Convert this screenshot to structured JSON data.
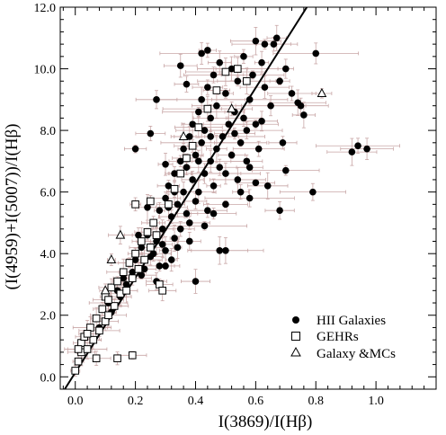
{
  "chart_data": {
    "type": "scatter",
    "xlabel": "I(3869)/I(Hβ)",
    "ylabel": "(I(4959)+I(5007))/I(Hβ)",
    "xlim": [
      -0.05,
      1.2
    ],
    "ylim": [
      -0.4,
      12.0
    ],
    "xticks": [
      0.0,
      0.2,
      0.4,
      0.6,
      0.8,
      1.0
    ],
    "xtick_labels": [
      "0.0",
      "0.2",
      "0.4",
      "0.6",
      "0.8",
      "1.0"
    ],
    "yticks": [
      0.0,
      2.0,
      4.0,
      6.0,
      8.0,
      10.0,
      12.0
    ],
    "ytick_labels": [
      "0.0",
      "2.0",
      "4.0",
      "6.0",
      "8.0",
      "10.0",
      "12.0"
    ],
    "grid": false,
    "legend_position": "bottom-right",
    "fit_line": {
      "x": [
        -0.035,
        0.77
      ],
      "y": [
        -0.4,
        12.0
      ]
    },
    "error_bar_color": "#c8a6a6",
    "series": [
      {
        "name": "HII Galaxies",
        "marker": "filled-circle",
        "points": [
          [
            0.08,
            1.6
          ],
          [
            0.12,
            2.1
          ],
          [
            0.15,
            2.6
          ],
          [
            0.17,
            3.0
          ],
          [
            0.19,
            3.4
          ],
          [
            0.2,
            3.8
          ],
          [
            0.22,
            3.3
          ],
          [
            0.22,
            4.2
          ],
          [
            0.24,
            4.6
          ],
          [
            0.25,
            3.9
          ],
          [
            0.26,
            5.0
          ],
          [
            0.27,
            4.4
          ],
          [
            0.28,
            5.4
          ],
          [
            0.28,
            3.6
          ],
          [
            0.29,
            4.8
          ],
          [
            0.3,
            5.8
          ],
          [
            0.3,
            4.1
          ],
          [
            0.31,
            6.2
          ],
          [
            0.32,
            5.2
          ],
          [
            0.32,
            3.8
          ],
          [
            0.33,
            6.6
          ],
          [
            0.33,
            4.5
          ],
          [
            0.34,
            5.6
          ],
          [
            0.35,
            7.0
          ],
          [
            0.35,
            4.8
          ],
          [
            0.36,
            6.0
          ],
          [
            0.36,
            7.4
          ],
          [
            0.37,
            5.3
          ],
          [
            0.37,
            6.8
          ],
          [
            0.38,
            7.8
          ],
          [
            0.38,
            5.0
          ],
          [
            0.39,
            6.4
          ],
          [
            0.39,
            8.2
          ],
          [
            0.4,
            5.7
          ],
          [
            0.4,
            7.2
          ],
          [
            0.41,
            8.6
          ],
          [
            0.41,
            6.0
          ],
          [
            0.42,
            7.6
          ],
          [
            0.42,
            9.0
          ],
          [
            0.43,
            6.6
          ],
          [
            0.43,
            8.0
          ],
          [
            0.44,
            5.4
          ],
          [
            0.44,
            9.4
          ],
          [
            0.45,
            7.0
          ],
          [
            0.45,
            8.4
          ],
          [
            0.46,
            6.2
          ],
          [
            0.46,
            9.8
          ],
          [
            0.47,
            7.4
          ],
          [
            0.47,
            8.8
          ],
          [
            0.48,
            6.8
          ],
          [
            0.48,
            10.2
          ],
          [
            0.49,
            7.8
          ],
          [
            0.5,
            9.2
          ],
          [
            0.5,
            6.6
          ],
          [
            0.51,
            8.2
          ],
          [
            0.52,
            10.0
          ],
          [
            0.52,
            7.2
          ],
          [
            0.53,
            8.6
          ],
          [
            0.54,
            6.4
          ],
          [
            0.54,
            9.6
          ],
          [
            0.55,
            7.6
          ],
          [
            0.56,
            8.4
          ],
          [
            0.56,
            10.4
          ],
          [
            0.57,
            7.0
          ],
          [
            0.58,
            9.0
          ],
          [
            0.58,
            6.8
          ],
          [
            0.59,
            9.8
          ],
          [
            0.6,
            8.2
          ],
          [
            0.61,
            7.4
          ],
          [
            0.62,
            10.2
          ],
          [
            0.63,
            9.4
          ],
          [
            0.64,
            6.2
          ],
          [
            0.65,
            8.8
          ],
          [
            0.66,
            10.8
          ],
          [
            0.67,
            11.0
          ],
          [
            0.68,
            9.6
          ],
          [
            0.69,
            7.6
          ],
          [
            0.7,
            10.0
          ],
          [
            0.72,
            9.2
          ],
          [
            0.74,
            8.9
          ],
          [
            0.75,
            8.8
          ],
          [
            0.76,
            8.5
          ],
          [
            0.79,
            6.0
          ],
          [
            0.8,
            10.5
          ],
          [
            0.92,
            7.3
          ],
          [
            0.94,
            7.5
          ],
          [
            0.97,
            7.4
          ],
          [
            0.5,
            4.1
          ],
          [
            0.48,
            4.1
          ],
          [
            0.4,
            3.1
          ],
          [
            0.2,
            7.4
          ],
          [
            0.27,
            9.0
          ],
          [
            0.25,
            7.9
          ],
          [
            0.35,
            10.1
          ],
          [
            0.37,
            9.5
          ],
          [
            0.42,
            10.5
          ],
          [
            0.44,
            10.6
          ],
          [
            0.6,
            10.9
          ],
          [
            0.63,
            10.8
          ],
          [
            0.7,
            6.7
          ],
          [
            0.68,
            5.4
          ],
          [
            0.6,
            6.3
          ],
          [
            0.58,
            5.8
          ],
          [
            0.55,
            6.0
          ],
          [
            0.33,
            6.0
          ],
          [
            0.3,
            6.9
          ],
          [
            0.24,
            5.5
          ],
          [
            0.21,
            4.6
          ],
          [
            0.18,
            3.7
          ],
          [
            0.14,
            2.8
          ],
          [
            0.11,
            2.4
          ],
          [
            0.16,
            3.2
          ],
          [
            0.23,
            3.5
          ],
          [
            0.27,
            3.1
          ],
          [
            0.3,
            3.6
          ],
          [
            0.34,
            4.2
          ],
          [
            0.38,
            4.4
          ],
          [
            0.43,
            4.9
          ],
          [
            0.46,
            5.3
          ],
          [
            0.5,
            5.6
          ],
          [
            0.41,
            7.0
          ],
          [
            0.39,
            7.5
          ],
          [
            0.45,
            7.8
          ],
          [
            0.53,
            7.9
          ],
          [
            0.57,
            8.0
          ],
          [
            0.62,
            8.3
          ],
          [
            0.31,
            5.5
          ],
          [
            0.29,
            4.3
          ],
          [
            0.26,
            4.0
          ]
        ]
      },
      {
        "name": "GEHRs",
        "marker": "open-square",
        "points": [
          [
            0.0,
            0.2
          ],
          [
            0.01,
            0.5
          ],
          [
            0.02,
            0.8
          ],
          [
            0.02,
            1.1
          ],
          [
            0.03,
            1.3
          ],
          [
            0.04,
            0.9
          ],
          [
            0.05,
            1.6
          ],
          [
            0.06,
            1.2
          ],
          [
            0.07,
            1.9
          ],
          [
            0.08,
            1.5
          ],
          [
            0.09,
            2.2
          ],
          [
            0.1,
            1.8
          ],
          [
            0.1,
            2.6
          ],
          [
            0.11,
            2.0
          ],
          [
            0.12,
            2.9
          ],
          [
            0.13,
            2.3
          ],
          [
            0.14,
            3.1
          ],
          [
            0.15,
            2.7
          ],
          [
            0.16,
            3.4
          ],
          [
            0.17,
            2.8
          ],
          [
            0.18,
            3.7
          ],
          [
            0.19,
            3.2
          ],
          [
            0.2,
            4.0
          ],
          [
            0.21,
            3.5
          ],
          [
            0.22,
            4.4
          ],
          [
            0.23,
            3.8
          ],
          [
            0.24,
            4.7
          ],
          [
            0.25,
            4.2
          ],
          [
            0.26,
            5.0
          ],
          [
            0.27,
            4.6
          ],
          [
            0.28,
            3.0
          ],
          [
            0.29,
            2.8
          ],
          [
            0.31,
            5.6
          ],
          [
            0.33,
            6.1
          ],
          [
            0.35,
            6.6
          ],
          [
            0.37,
            7.1
          ],
          [
            0.39,
            7.5
          ],
          [
            0.41,
            8.1
          ],
          [
            0.44,
            8.7
          ],
          [
            0.47,
            9.3
          ],
          [
            0.5,
            9.9
          ],
          [
            0.54,
            10.0
          ],
          [
            0.57,
            9.6
          ],
          [
            0.14,
            0.6
          ],
          [
            0.19,
            0.7
          ],
          [
            0.07,
            0.6
          ],
          [
            0.04,
            1.4
          ],
          [
            0.01,
            0.9
          ],
          [
            0.11,
            2.5
          ],
          [
            0.25,
            5.7
          ],
          [
            0.2,
            5.6
          ]
        ]
      },
      {
        "name": "Galaxy &MCs",
        "marker": "open-triangle",
        "points": [
          [
            0.12,
            3.8
          ],
          [
            0.15,
            4.6
          ],
          [
            0.36,
            7.8
          ],
          [
            0.52,
            8.7
          ],
          [
            0.82,
            9.2
          ],
          [
            0.1,
            2.8
          ]
        ]
      }
    ]
  }
}
